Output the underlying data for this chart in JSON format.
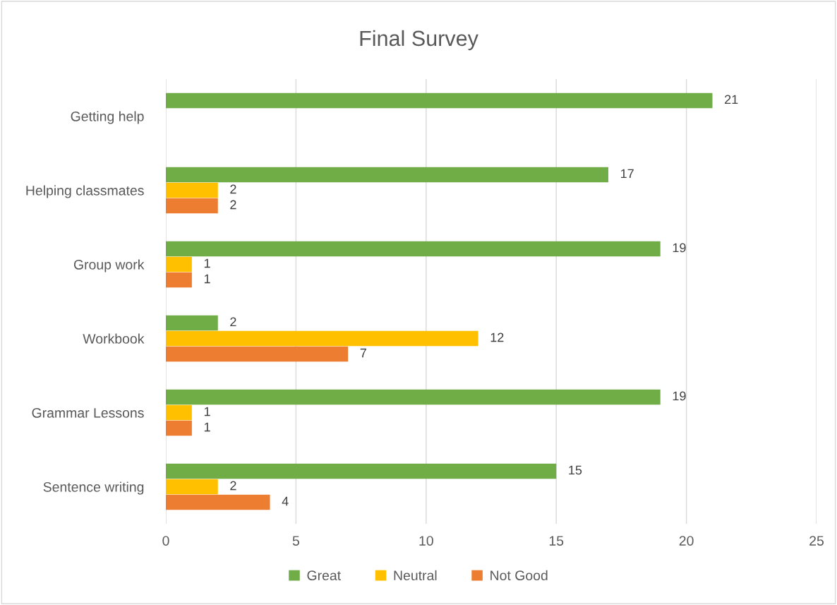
{
  "chart_data": {
    "type": "bar",
    "orientation": "horizontal",
    "title": "Final Survey",
    "categories": [
      "Getting help",
      "Helping classmates",
      "Group work",
      "Workbook",
      "Grammar Lessons",
      "Sentence writing"
    ],
    "series": [
      {
        "name": "Great",
        "color": "#70ad47",
        "values": [
          21,
          17,
          19,
          2,
          19,
          15
        ]
      },
      {
        "name": "Neutral",
        "color": "#ffc000",
        "values": [
          null,
          2,
          1,
          12,
          1,
          2
        ]
      },
      {
        "name": "Not Good",
        "color": "#ed7d31",
        "values": [
          null,
          2,
          1,
          7,
          1,
          4
        ]
      }
    ],
    "xlim": [
      0,
      25
    ],
    "xticks": [
      0,
      5,
      10,
      15,
      20,
      25
    ],
    "grid": "x",
    "legend": "bottom",
    "data_labels": true
  }
}
